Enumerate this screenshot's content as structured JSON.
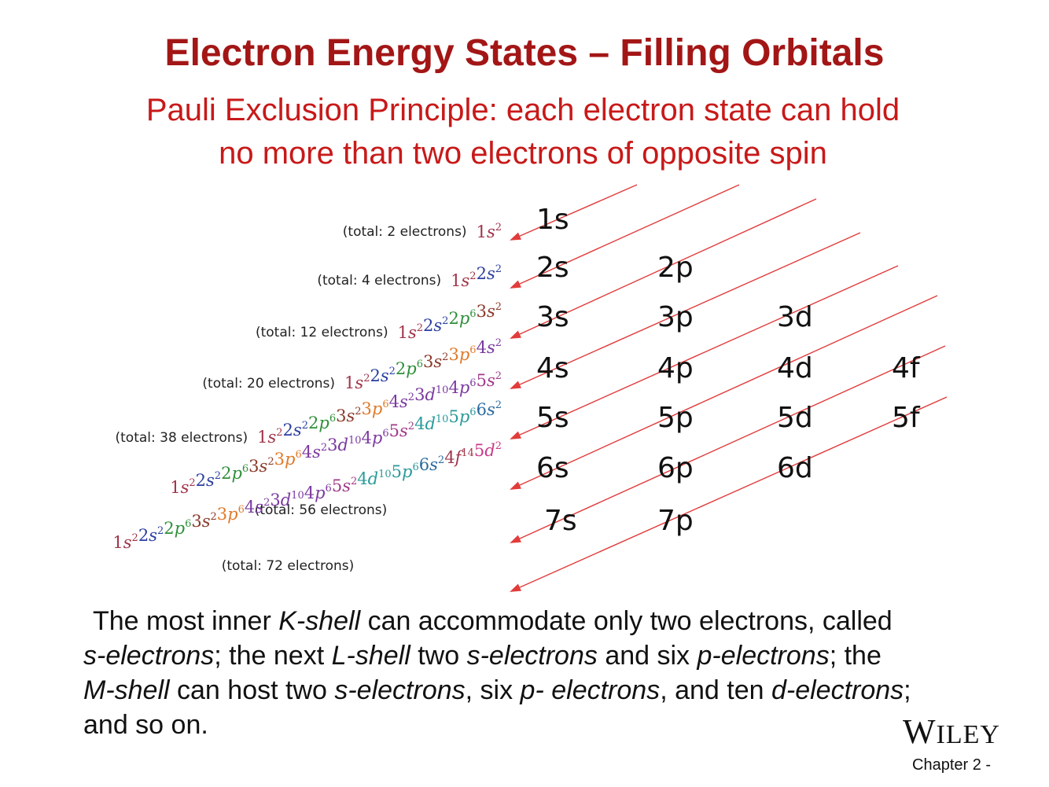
{
  "title": "Electron Energy States – Filling Orbitals",
  "subtitle_line1": "Pauli Exclusion Principle: each electron state can hold",
  "subtitle_line2": "no more than two electrons of opposite spin",
  "colors": {
    "title": "#a31616",
    "subtitle": "#c81919",
    "arrow": "#e23b3b",
    "s1": "#a0344a",
    "s2": "#2c3fa0",
    "p2": "#2f8f3a",
    "s3": "#8a3a2a",
    "p3": "#e07a2a",
    "s4": "#7b3aa0",
    "d3": "#7b3aa0",
    "p4": "#7b3aa0",
    "s5": "#a03a8a",
    "d4": "#2a9a9a",
    "p5": "#2a9a9a",
    "s6": "#2a6aa0",
    "f4": "#a0344a",
    "d5": "#c83a8a"
  },
  "orbitals": [
    {
      "row": 1,
      "labels": [
        "1s"
      ]
    },
    {
      "row": 2,
      "labels": [
        "2s",
        "2p"
      ]
    },
    {
      "row": 3,
      "labels": [
        "3s",
        "3p",
        "3d"
      ]
    },
    {
      "row": 4,
      "labels": [
        "4s",
        "4p",
        "4d",
        "4f"
      ]
    },
    {
      "row": 5,
      "labels": [
        "5s",
        "5p",
        "5d",
        "5f"
      ]
    },
    {
      "row": 6,
      "labels": [
        "6s",
        "6p",
        "6d"
      ]
    },
    {
      "row": 7,
      "labels": [
        "7s",
        "7p"
      ]
    }
  ],
  "configs": [
    {
      "total": "(total: 2 electrons)",
      "terms": [
        [
          "1s",
          "2",
          "s1"
        ]
      ]
    },
    {
      "total": "(total: 4 electrons)",
      "terms": [
        [
          "1s",
          "2",
          "s1"
        ],
        [
          "2s",
          "2",
          "s2"
        ]
      ]
    },
    {
      "total": "(total: 12 electrons)",
      "terms": [
        [
          "1s",
          "2",
          "s1"
        ],
        [
          "2s",
          "2",
          "s2"
        ],
        [
          "2p",
          "6",
          "p2"
        ],
        [
          "3s",
          "2",
          "s3"
        ]
      ]
    },
    {
      "total": "(total: 20 electrons)",
      "terms": [
        [
          "1s",
          "2",
          "s1"
        ],
        [
          "2s",
          "2",
          "s2"
        ],
        [
          "2p",
          "6",
          "p2"
        ],
        [
          "3s",
          "2",
          "s3"
        ],
        [
          "3p",
          "6",
          "p3"
        ],
        [
          "4s",
          "2",
          "s4"
        ]
      ]
    },
    {
      "total": "(total: 38 electrons)",
      "terms": [
        [
          "1s",
          "2",
          "s1"
        ],
        [
          "2s",
          "2",
          "s2"
        ],
        [
          "2p",
          "6",
          "p2"
        ],
        [
          "3s",
          "2",
          "s3"
        ],
        [
          "3p",
          "6",
          "p3"
        ],
        [
          "4s",
          "2",
          "s4"
        ],
        [
          "3d",
          "10",
          "d3"
        ],
        [
          "4p",
          "6",
          "p4"
        ],
        [
          "5s",
          "2",
          "s5"
        ]
      ]
    },
    {
      "total": "(total: 56 electrons)",
      "terms": [
        [
          "1s",
          "2",
          "s1"
        ],
        [
          "2s",
          "2",
          "s2"
        ],
        [
          "2p",
          "6",
          "p2"
        ],
        [
          "3s",
          "2",
          "s3"
        ],
        [
          "3p",
          "6",
          "p3"
        ],
        [
          "4s",
          "2",
          "s4"
        ],
        [
          "3d",
          "10",
          "d3"
        ],
        [
          "4p",
          "6",
          "p4"
        ],
        [
          "5s",
          "2",
          "s5"
        ],
        [
          "4d",
          "10",
          "d4"
        ],
        [
          "5p",
          "6",
          "p5"
        ],
        [
          "6s",
          "2",
          "s6"
        ]
      ]
    },
    {
      "total": "(total: 72 electrons)",
      "terms": [
        [
          "1s",
          "2",
          "s1"
        ],
        [
          "2s",
          "2",
          "s2"
        ],
        [
          "2p",
          "6",
          "p2"
        ],
        [
          "3s",
          "2",
          "s3"
        ],
        [
          "3p",
          "6",
          "p3"
        ],
        [
          "4s",
          "2",
          "s4"
        ],
        [
          "3d",
          "10",
          "d3"
        ],
        [
          "4p",
          "6",
          "p4"
        ],
        [
          "5s",
          "2",
          "s5"
        ],
        [
          "4d",
          "10",
          "d4"
        ],
        [
          "5p",
          "6",
          "p5"
        ],
        [
          "6s",
          "2",
          "s6"
        ],
        [
          "4f",
          "14",
          "f4"
        ],
        [
          "5d",
          "2",
          "d5"
        ]
      ]
    }
  ],
  "body": {
    "p1": "The most inner ",
    "k_shell": "K-shell",
    "p2": " can accommodate only two electrons, called",
    "s_electrons_1": "s-electrons",
    "p3": "; the next ",
    "l_shell": "L-shell",
    "p4": " two ",
    "s_electrons_2": "s-electrons",
    "p5": " and six ",
    "p_electrons_1": "p-electrons",
    "p6": "; the",
    "m_shell": "M-shell",
    "p7": " can host two ",
    "s_electrons_3": "s-electrons",
    "p8": ", six ",
    "p_electrons_2": "p- electrons",
    "p9": ", and ten ",
    "d_electrons": "d-electrons",
    "p10": ";",
    "p11": "and so on."
  },
  "logo_first": "W",
  "logo_rest": "ILEY",
  "footer": "Chapter 2 -"
}
